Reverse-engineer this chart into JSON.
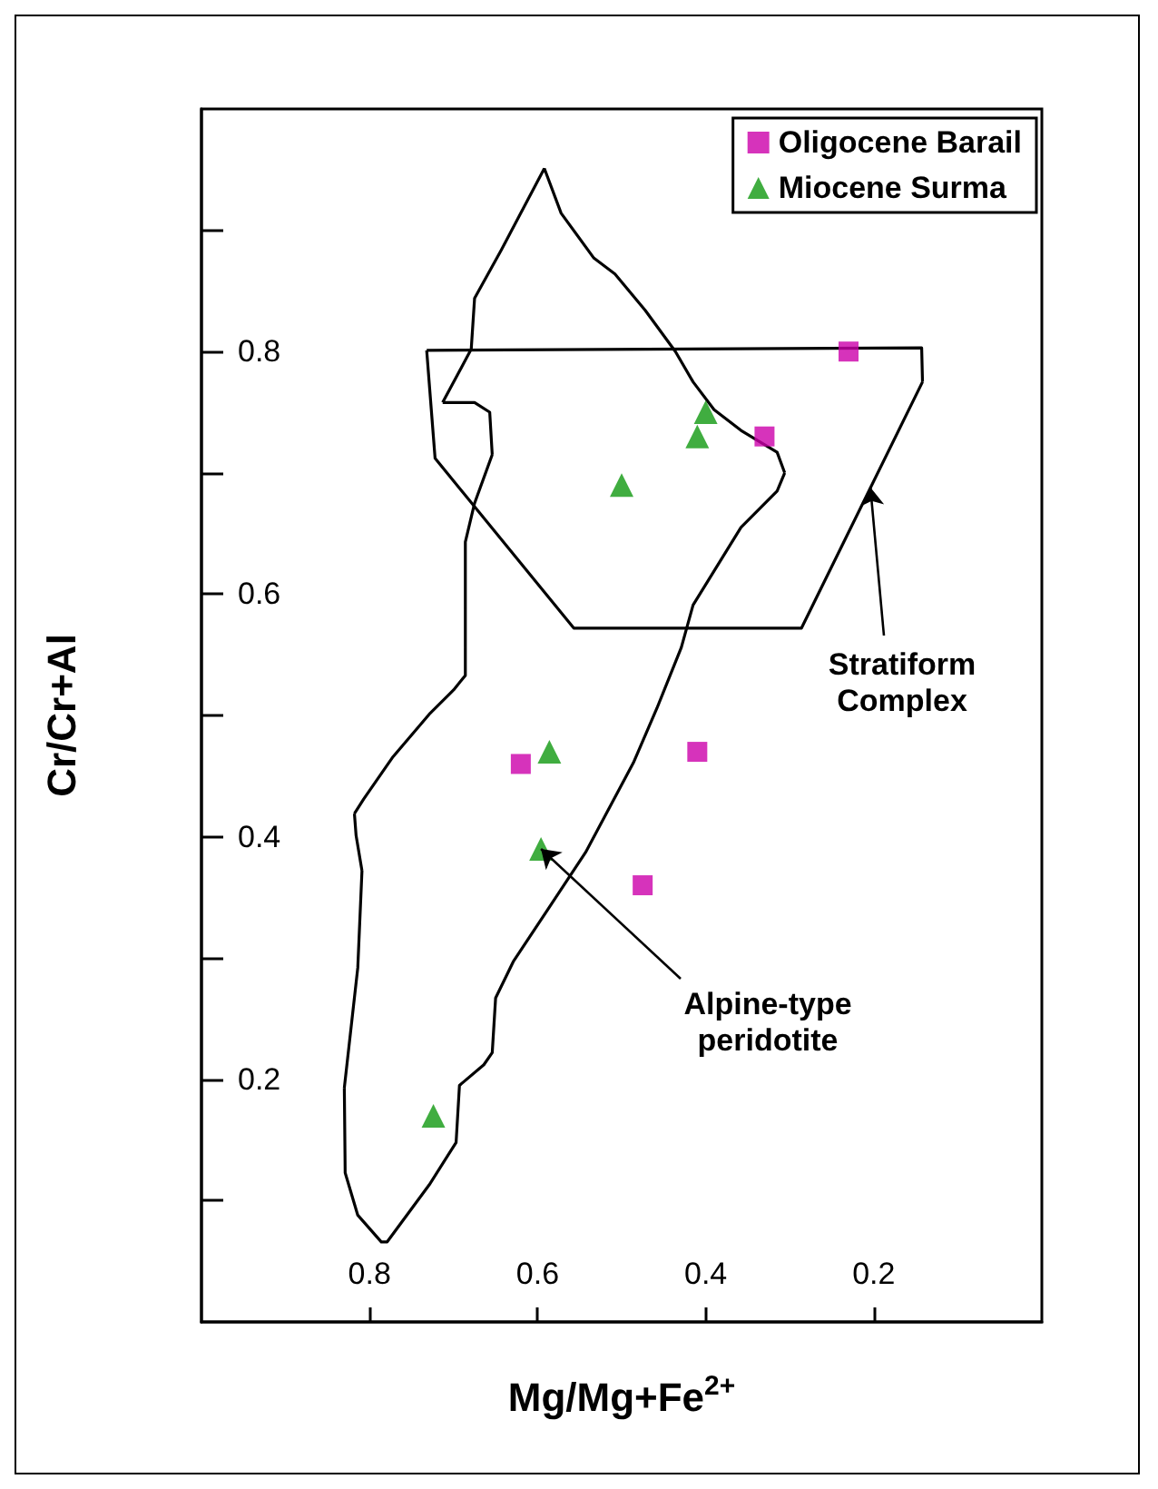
{
  "chart_data": {
    "type": "scatter",
    "xlabel": "Mg/Mg+Fe$^{2+}$",
    "ylabel": "Cr/Cr+Al",
    "xlim": [
      1.0,
      0.0
    ],
    "xticks": [
      0.8,
      0.6,
      0.4,
      0.2
    ],
    "ylim": [
      0,
      1.0
    ],
    "yticks": [
      {
        "value": 0.1,
        "label": null
      },
      0.2,
      {
        "value": 0.3,
        "label": null
      },
      0.4,
      {
        "value": 0.5,
        "label": null
      },
      0.6,
      {
        "value": 0.7,
        "label": null
      },
      0.8,
      {
        "value": 0.9,
        "label": null
      }
    ],
    "grid": false,
    "legend": "top right",
    "annotations": [
      {
        "text": "Stratiform\nComplex",
        "x": 0.204,
        "y": 0.688
      },
      {
        "text": "Alpine-type\nperidotite",
        "x": 0.596,
        "y": 0.39
      }
    ],
    "series": [
      {
        "name": "Oligocene Barail",
        "color": "#cc00aa",
        "marker": "square",
        "x": [
          0.23,
          0.33,
          0.62,
          0.41,
          0.475
        ],
        "values": [
          0.8,
          0.73,
          0.46,
          0.47,
          0.36
        ]
      },
      {
        "name": "Miocene Surma",
        "color": "#109910",
        "marker": "triangle",
        "x": [
          0.4,
          0.41,
          0.5,
          0.586,
          0.596,
          0.724
        ],
        "values": [
          0.75,
          0.73,
          0.69,
          0.47,
          0.39,
          0.17
        ]
      },
      {
        "type": "line",
        "color": "#000000",
        "marker": "none",
        "line_style": "solid",
        "x": [
          0.732,
          0.143,
          0.142,
          null,
          0.142,
          0.286,
          0.557,
          0.722,
          0.732
        ],
        "values": [
          0.801,
          0.803,
          0.775,
          null,
          0.775,
          0.572,
          0.572,
          0.712,
          0.801
        ]
      },
      {
        "type": "line",
        "color": "#000000",
        "marker": "none",
        "line_style": "solid",
        "x": [
          0.592,
          0.572,
          0.533,
          0.508,
          0.472,
          0.436,
          0.415,
          0.39,
          0.358,
          0.315,
          0.306,
          null,
          0.306,
          0.315,
          0.358,
          0.415,
          0.429,
          0.458,
          0.486,
          0.543,
          0.586,
          0.629,
          0.65,
          0.654,
          0.664,
          0.693,
          0.697,
          0.729,
          0.779,
          0.786,
          0.814,
          0.829,
          0.83,
          null,
          0.83,
          0.814,
          0.809,
          null,
          0.809,
          0.816,
          0.818,
          null,
          0.818,
          0.807,
          0.772,
          0.729,
          0.7,
          0.686,
          0.686,
          0.675,
          0.654,
          null,
          0.654,
          0.657,
          0.675,
          0.713,
          null,
          0.713,
          0.679,
          0.675,
          0.643,
          0.592
        ],
        "values": [
          0.951,
          0.914,
          0.877,
          0.864,
          0.834,
          0.8,
          0.775,
          0.752,
          0.735,
          0.717,
          0.7,
          null,
          0.7,
          0.685,
          0.655,
          0.591,
          0.556,
          0.506,
          0.461,
          0.387,
          0.342,
          0.297,
          0.267,
          0.222,
          0.212,
          0.195,
          0.148,
          0.113,
          0.066,
          0.066,
          0.088,
          0.123,
          0.193,
          null,
          0.193,
          0.292,
          0.372,
          null,
          0.372,
          0.401,
          0.419,
          null,
          0.419,
          0.431,
          0.466,
          0.501,
          0.521,
          0.533,
          0.643,
          0.675,
          0.715,
          null,
          0.715,
          0.75,
          0.758,
          0.758,
          null,
          0.758,
          0.802,
          0.844,
          0.884,
          0.951
        ]
      }
    ]
  }
}
